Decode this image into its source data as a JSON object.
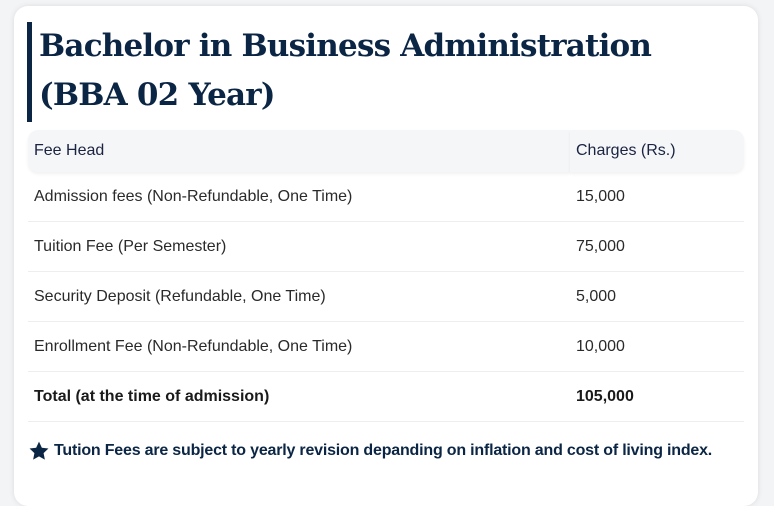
{
  "title": "Bachelor in Business Administration (BBA 02 Year)",
  "table": {
    "headers": [
      "Fee Head",
      "Charges (Rs.)"
    ],
    "rows": [
      {
        "head": "Admission fees (Non-Refundable, One Time)",
        "charge": "15,000"
      },
      {
        "head": "Tuition Fee (Per Semester)",
        "charge": "75,000"
      },
      {
        "head": "Security Deposit (Refundable, One Time)",
        "charge": "5,000"
      },
      {
        "head": "Enrollment Fee (Non-Refundable, One Time)",
        "charge": "10,000"
      }
    ],
    "total": {
      "head": "Total (at the time of admission)",
      "charge": "105,000"
    }
  },
  "note": {
    "icon": "star-icon",
    "text": "Tution Fees are subject to yearly revision depanding on inflation and cost of living index."
  },
  "colors": {
    "accent": "#0b2545"
  }
}
